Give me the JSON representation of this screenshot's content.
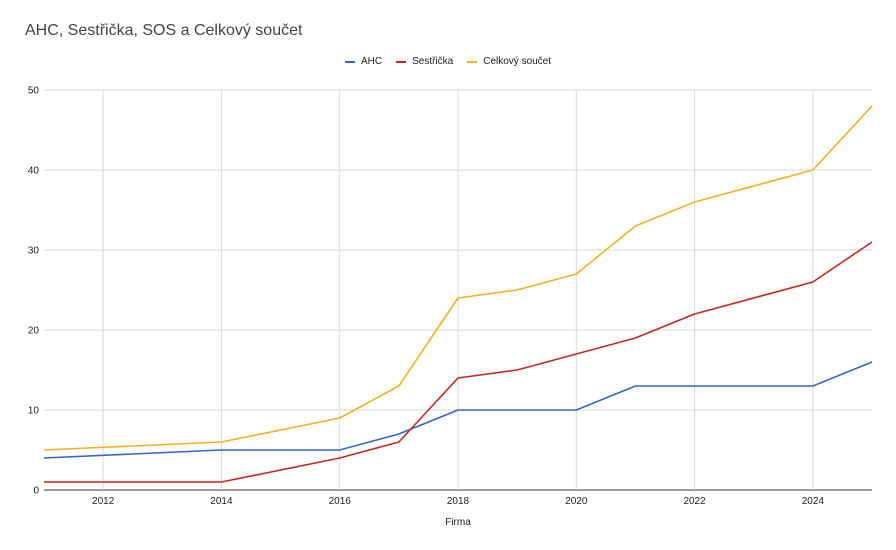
{
  "chart_data": {
    "type": "line",
    "title": "AHC, Sestřička, SOS a Celkový součet",
    "xlabel": "Firma",
    "ylabel": "",
    "x": [
      2011,
      2014,
      2016,
      2017,
      2018,
      2019,
      2020,
      2021,
      2022,
      2024,
      2025
    ],
    "xlim": [
      2011,
      2025
    ],
    "ylim": [
      0,
      50
    ],
    "x_ticks": [
      "2012",
      "2014",
      "2016",
      "2018",
      "2020",
      "2022",
      "2024"
    ],
    "y_ticks": [
      "0",
      "10",
      "20",
      "30",
      "40",
      "50"
    ],
    "grid": true,
    "legend_position": "top-center",
    "series": [
      {
        "name": "AHC",
        "color": "#3366cc",
        "values": [
          4,
          5,
          5,
          7,
          10,
          10,
          10,
          13,
          13,
          13,
          16
        ]
      },
      {
        "name": "Sestřička",
        "color": "#c5291e",
        "values": [
          1,
          1,
          4,
          6,
          14,
          15,
          17,
          19,
          22,
          26,
          31
        ]
      },
      {
        "name": "Celkový součet",
        "color": "#f1b121",
        "values": [
          5,
          6,
          9,
          13,
          24,
          25,
          27,
          33,
          36,
          40,
          48
        ]
      }
    ]
  }
}
